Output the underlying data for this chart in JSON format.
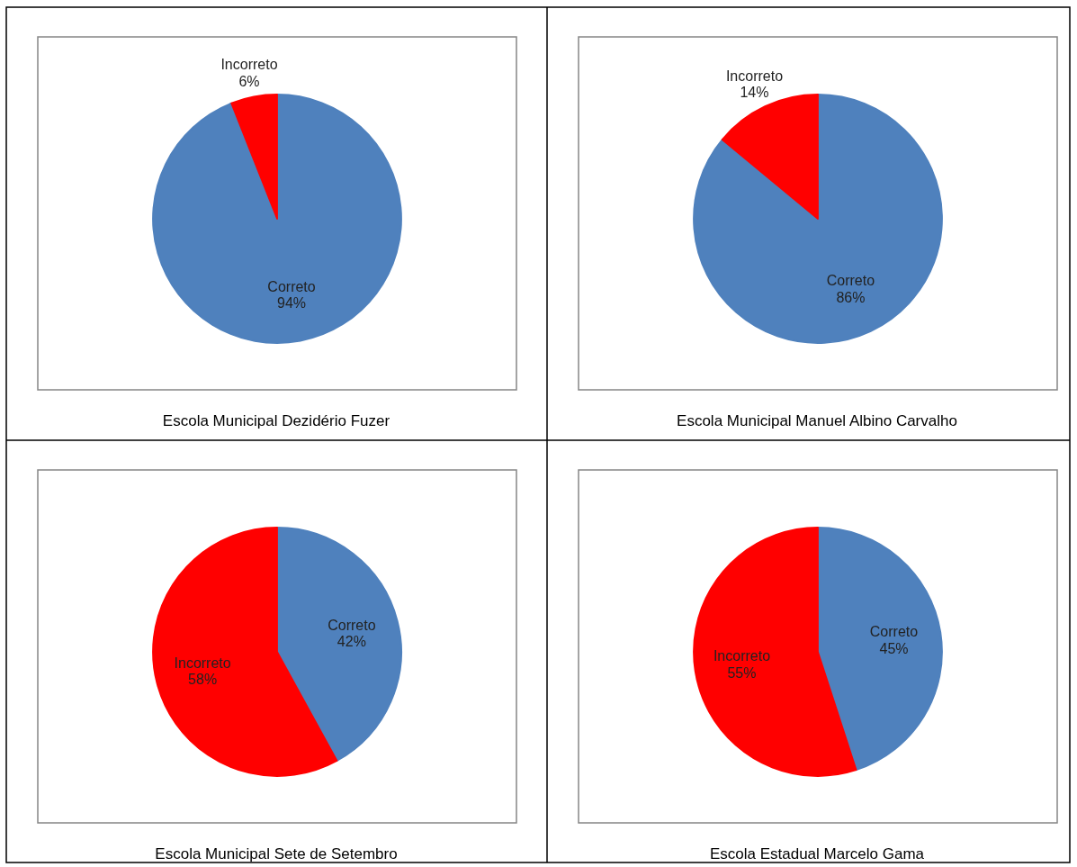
{
  "chart_data": [
    {
      "type": "pie",
      "title": "Escola Municipal Dezidério Fuzer",
      "categories": [
        "Correto",
        "Incorreto"
      ],
      "values": [
        94,
        6
      ],
      "value_labels": [
        "94%",
        "6%"
      ],
      "data_labels": true,
      "colors": [
        "#4f81bd",
        "#ff0000"
      ]
    },
    {
      "type": "pie",
      "title": "Escola Municipal Manuel Albino Carvalho",
      "categories": [
        "Correto",
        "Incorreto"
      ],
      "values": [
        86,
        14
      ],
      "value_labels": [
        "86%",
        "14%"
      ],
      "data_labels": true,
      "colors": [
        "#4f81bd",
        "#ff0000"
      ]
    },
    {
      "type": "pie",
      "title": "Escola Municipal Sete de Setembro",
      "categories": [
        "Correto",
        "Incorreto"
      ],
      "values": [
        42,
        58
      ],
      "value_labels": [
        "42%",
        "58%"
      ],
      "data_labels": true,
      "colors": [
        "#4f81bd",
        "#ff0000"
      ]
    },
    {
      "type": "pie",
      "title": "Escola Estadual Marcelo Gama",
      "categories": [
        "Correto",
        "Incorreto"
      ],
      "values": [
        45,
        55
      ],
      "value_labels": [
        "45%",
        "55%"
      ],
      "data_labels": true,
      "colors": [
        "#4f81bd",
        "#ff0000"
      ]
    }
  ]
}
